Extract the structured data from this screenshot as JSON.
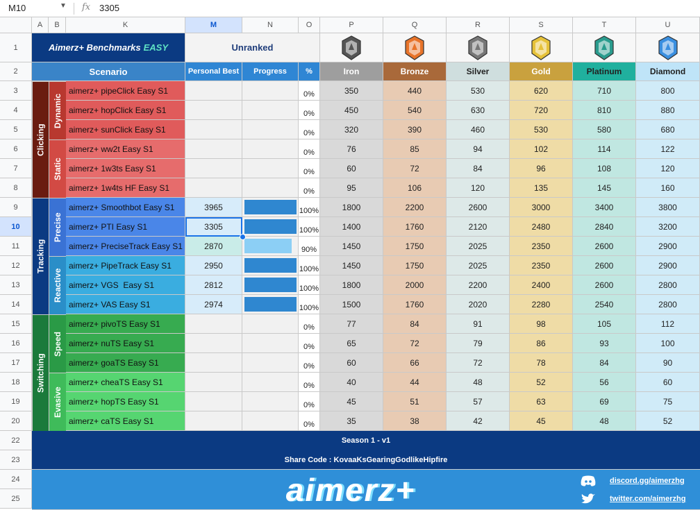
{
  "formula_bar": {
    "cell_ref": "M10",
    "fx": "fx",
    "value": "3305"
  },
  "column_headers": [
    "A",
    "B",
    "K",
    "M",
    "N",
    "O",
    "P",
    "Q",
    "R",
    "S",
    "T",
    "U"
  ],
  "row_numbers": [
    1,
    2,
    3,
    4,
    5,
    6,
    7,
    8,
    9,
    10,
    11,
    12,
    13,
    14,
    15,
    16,
    17,
    18,
    19,
    20,
    22,
    23,
    24,
    25
  ],
  "title": "Aimerz+ Benchmarks",
  "title_emphasis": "EASY",
  "rank_status": "Unranked",
  "headers": {
    "scenario": "Scenario",
    "personal_best": "Personal Best",
    "progress": "Progress",
    "percent": "%"
  },
  "ranks": [
    {
      "name": "Iron",
      "color": "#9e9e9e",
      "text_color": "#ffffff",
      "cell_color": "#d9d9d9",
      "icon_color": "#555555"
    },
    {
      "name": "Bronze",
      "color": "#a9693a",
      "text_color": "#ffffff",
      "cell_color": "#e8cbb3",
      "icon_color": "#e8742a"
    },
    {
      "name": "Silver",
      "color": "#cfdede",
      "text_color": "#222222",
      "cell_color": "#dde9e8",
      "icon_color": "#777777"
    },
    {
      "name": "Gold",
      "color": "#c9a13e",
      "text_color": "#ffffff",
      "cell_color": "#efdca6",
      "icon_color": "#e6c23a"
    },
    {
      "name": "Platinum",
      "color": "#20b09e",
      "text_color": "#222222",
      "cell_color": "#c0e7e1",
      "icon_color": "#2a9c8e"
    },
    {
      "name": "Diamond",
      "color": "#bfe4f8",
      "text_color": "#222222",
      "cell_color": "#d0ebf8",
      "icon_color": "#3a8fe0"
    }
  ],
  "groups": [
    {
      "name": "Clicking",
      "color": "#6a1c10",
      "subgroups": [
        {
          "name": "Dynamic",
          "color": "#b8382f",
          "row_color": "#e05b5b",
          "rows": [
            {
              "scenario": "aimerz+ pipeClick Easy S1",
              "personal_best": null,
              "progress": 0,
              "progress_label": "0%",
              "thresholds": [
                350,
                440,
                530,
                620,
                710,
                800
              ]
            },
            {
              "scenario": "aimerz+ hopClick Easy S1",
              "personal_best": null,
              "progress": 0,
              "progress_label": "0%",
              "thresholds": [
                450,
                540,
                630,
                720,
                810,
                880
              ]
            },
            {
              "scenario": "aimerz+ sunClick Easy S1",
              "personal_best": null,
              "progress": 0,
              "progress_label": "0%",
              "thresholds": [
                320,
                390,
                460,
                530,
                580,
                680
              ]
            }
          ]
        },
        {
          "name": "Static",
          "color": "#d24a44",
          "row_color": "#e66c6c",
          "rows": [
            {
              "scenario": "aimerz+ ww2t Easy S1",
              "personal_best": null,
              "progress": 0,
              "progress_label": "0%",
              "thresholds": [
                76,
                85,
                94,
                102,
                114,
                122
              ]
            },
            {
              "scenario": "aimerz+ 1w3ts Easy S1",
              "personal_best": null,
              "progress": 0,
              "progress_label": "0%",
              "thresholds": [
                60,
                72,
                84,
                96,
                108,
                120
              ]
            },
            {
              "scenario": "aimerz+ 1w4ts HF Easy S1",
              "personal_best": null,
              "progress": 0,
              "progress_label": "0%",
              "thresholds": [
                95,
                106,
                120,
                135,
                145,
                160
              ]
            }
          ]
        }
      ]
    },
    {
      "name": "Tracking",
      "color": "#0b3a82",
      "subgroups": [
        {
          "name": "Precise",
          "color": "#3a72d4",
          "row_color": "#4a86e8",
          "rows": [
            {
              "scenario": "aimerz+ Smoothbot Easy S1",
              "personal_best": 3965,
              "progress": 100,
              "progress_label": "100%",
              "thresholds": [
                1800,
                2200,
                2600,
                3000,
                3400,
                3800
              ]
            },
            {
              "scenario": "aimerz+ PTI Easy S1",
              "personal_best": 3305,
              "progress": 100,
              "progress_label": "100%",
              "thresholds": [
                1400,
                1760,
                2120,
                2480,
                2840,
                3200
              ]
            },
            {
              "scenario": "aimerz+ PreciseTrack Easy S1",
              "personal_best": 2870,
              "progress": 90,
              "progress_label": "90%",
              "thresholds": [
                1450,
                1750,
                2025,
                2350,
                2600,
                2900
              ]
            }
          ]
        },
        {
          "name": "Reactive",
          "color": "#2a8ec8",
          "row_color": "#3aade0",
          "rows": [
            {
              "scenario": "aimerz+ PipeTrack Easy S1",
              "personal_best": 2950,
              "progress": 100,
              "progress_label": "100%",
              "thresholds": [
                1450,
                1750,
                2025,
                2350,
                2600,
                2900
              ]
            },
            {
              "scenario": "aimerz+ VGS  Easy S1",
              "personal_best": 2812,
              "progress": 100,
              "progress_label": "100%",
              "thresholds": [
                1800,
                2000,
                2200,
                2400,
                2600,
                2800
              ]
            },
            {
              "scenario": "aimerz+ VAS Easy S1",
              "personal_best": 2974,
              "progress": 100,
              "progress_label": "100%",
              "thresholds": [
                1500,
                1760,
                2020,
                2280,
                2540,
                2800
              ]
            }
          ]
        }
      ]
    },
    {
      "name": "Switching",
      "color": "#1b7a3b",
      "subgroups": [
        {
          "name": "Speed",
          "color": "#2a9a46",
          "row_color": "#37ab50",
          "rows": [
            {
              "scenario": "aimerz+ pivoTS Easy S1",
              "personal_best": null,
              "progress": 0,
              "progress_label": "0%",
              "thresholds": [
                77,
                84,
                91,
                98,
                105,
                112
              ]
            },
            {
              "scenario": "aimerz+ nuTS Easy S1",
              "personal_best": null,
              "progress": 0,
              "progress_label": "0%",
              "thresholds": [
                65,
                72,
                79,
                86,
                93,
                100
              ]
            },
            {
              "scenario": "aimerz+ goaTS Easy S1",
              "personal_best": null,
              "progress": 0,
              "progress_label": "0%",
              "thresholds": [
                60,
                66,
                72,
                78,
                84,
                90
              ]
            }
          ]
        },
        {
          "name": "Evasive",
          "color": "#3fbb5a",
          "row_color": "#56d571",
          "rows": [
            {
              "scenario": "aimerz+ cheaTS Easy S1",
              "personal_best": null,
              "progress": 0,
              "progress_label": "0%",
              "thresholds": [
                40,
                44,
                48,
                52,
                56,
                60
              ]
            },
            {
              "scenario": "aimerz+ hopTS Easy S1",
              "personal_best": null,
              "progress": 0,
              "progress_label": "0%",
              "thresholds": [
                45,
                51,
                57,
                63,
                69,
                75
              ]
            },
            {
              "scenario": "aimerz+ caTS Easy S1",
              "personal_best": null,
              "progress": 0,
              "progress_label": "0%",
              "thresholds": [
                35,
                38,
                42,
                45,
                48,
                52
              ]
            }
          ]
        }
      ]
    }
  ],
  "footer": {
    "season": "Season 1 - v1",
    "share_code": "Share Code : KovaaKsGearingGodlikeHipfire",
    "logo": "aimerz+",
    "links": [
      "discord.gg/aimerzhg",
      "twitter.com/aimerzhg"
    ]
  }
}
